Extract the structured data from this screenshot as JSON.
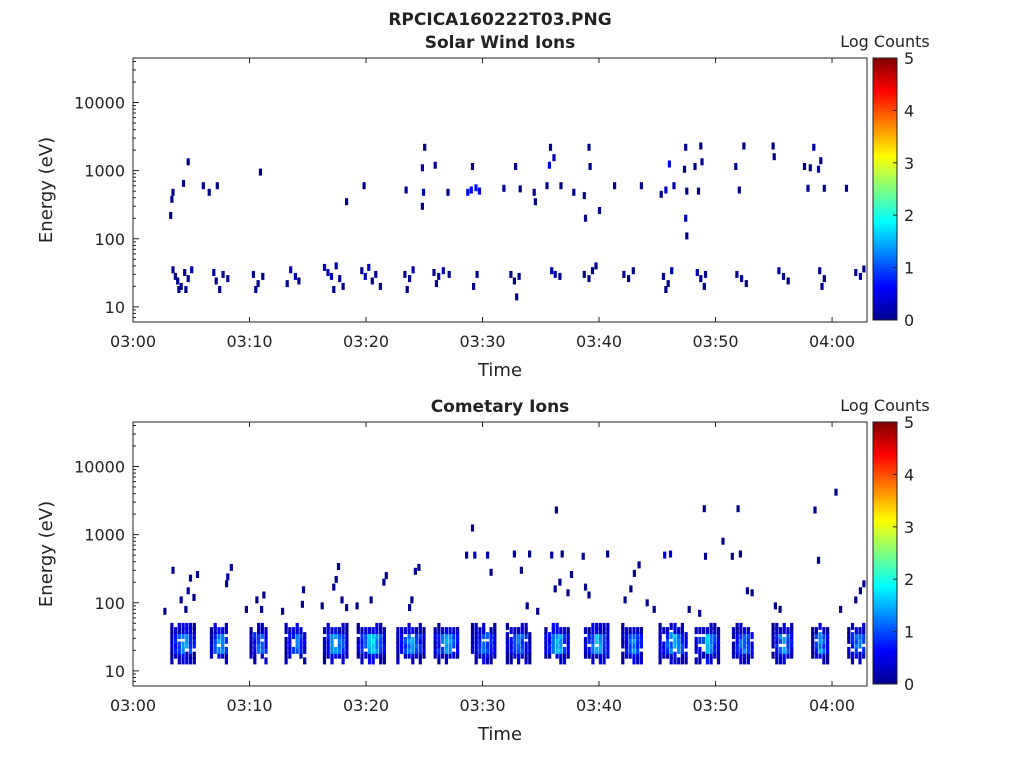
{
  "figure_title": "RPCICA160222T03.PNG",
  "chart_data": [
    {
      "type": "heatmap",
      "title": "Solar Wind Ions",
      "xlabel": "Time",
      "ylabel": "Energy (eV)",
      "x_ticks": [
        "03:00",
        "03:10",
        "03:20",
        "03:30",
        "03:40",
        "03:50",
        "04:00"
      ],
      "xlim_minutes": [
        0,
        63
      ],
      "y_scale": "log",
      "y_ticks": [
        10,
        100,
        1000,
        10000
      ],
      "y_tick_labels": [
        "10",
        "100",
        "1000",
        "10000"
      ],
      "ylim": [
        6,
        45000
      ],
      "colorbar": {
        "label": "Log Counts",
        "ticks": [
          "0",
          "1",
          "2",
          "3",
          "4",
          "5"
        ],
        "range": [
          0,
          5
        ],
        "colormap": "jet"
      },
      "cells_note": "[time_minutes_after_03:00, energy_eV, log_counts]",
      "cells": [
        [
          3.3,
          35,
          0
        ],
        [
          3.5,
          28,
          0
        ],
        [
          3.7,
          24,
          0
        ],
        [
          4.0,
          20,
          0
        ],
        [
          4.3,
          32,
          0
        ],
        [
          4.6,
          26,
          0
        ],
        [
          4.9,
          35,
          0.2
        ],
        [
          3.8,
          18,
          0
        ],
        [
          4.4,
          18,
          0
        ],
        [
          6.8,
          32,
          0
        ],
        [
          7.0,
          24,
          0
        ],
        [
          7.3,
          18,
          0
        ],
        [
          7.6,
          30,
          0
        ],
        [
          8.0,
          26,
          0
        ],
        [
          10.2,
          30,
          0
        ],
        [
          10.6,
          22,
          0
        ],
        [
          11.0,
          28,
          0
        ],
        [
          10.4,
          18,
          0
        ],
        [
          13.4,
          35,
          0.3
        ],
        [
          13.8,
          28,
          0.2
        ],
        [
          14.1,
          24,
          0
        ],
        [
          13.1,
          22,
          0
        ],
        [
          16.3,
          38,
          0.3
        ],
        [
          16.6,
          32,
          0.2
        ],
        [
          16.9,
          28,
          0.2
        ],
        [
          17.3,
          40,
          0.2
        ],
        [
          17.6,
          26,
          0
        ],
        [
          17.9,
          20,
          0
        ],
        [
          17.1,
          18,
          0
        ],
        [
          19.5,
          34,
          0
        ],
        [
          19.8,
          28,
          0.2
        ],
        [
          20.1,
          38,
          0.3
        ],
        [
          20.4,
          24,
          0
        ],
        [
          20.7,
          30,
          0
        ],
        [
          21.1,
          20,
          0
        ],
        [
          23.2,
          30,
          0
        ],
        [
          23.6,
          26,
          0
        ],
        [
          23.9,
          35,
          0.2
        ],
        [
          23.4,
          18,
          0
        ],
        [
          25.7,
          32,
          0
        ],
        [
          26.1,
          28,
          0.2
        ],
        [
          26.5,
          34,
          0.2
        ],
        [
          27.0,
          30,
          0
        ],
        [
          25.9,
          22,
          0
        ],
        [
          29.4,
          30,
          0
        ],
        [
          29.1,
          20,
          0
        ],
        [
          32.3,
          30,
          0
        ],
        [
          32.6,
          24,
          0
        ],
        [
          33.0,
          28,
          0
        ],
        [
          32.8,
          14,
          0
        ],
        [
          35.8,
          34,
          0.2
        ],
        [
          36.1,
          30,
          0.2
        ],
        [
          36.5,
          28,
          0
        ],
        [
          38.6,
          30,
          0
        ],
        [
          39.0,
          26,
          0
        ],
        [
          39.3,
          34,
          0
        ],
        [
          39.6,
          40,
          0
        ],
        [
          42.0,
          30,
          0
        ],
        [
          42.4,
          26,
          0
        ],
        [
          42.8,
          34,
          0
        ],
        [
          45.4,
          28,
          0
        ],
        [
          45.8,
          22,
          0
        ],
        [
          46.1,
          34,
          0.2
        ],
        [
          45.6,
          18,
          0
        ],
        [
          48.3,
          32,
          0.2
        ],
        [
          48.6,
          26,
          0
        ],
        [
          49.0,
          30,
          0
        ],
        [
          48.9,
          20,
          0
        ],
        [
          51.7,
          30,
          0
        ],
        [
          52.1,
          26,
          0
        ],
        [
          52.5,
          22,
          0
        ],
        [
          55.3,
          34,
          0.2
        ],
        [
          55.7,
          28,
          0
        ],
        [
          56.1,
          24,
          0
        ],
        [
          58.8,
          34,
          0
        ],
        [
          59.2,
          26,
          0
        ],
        [
          59.0,
          20,
          0
        ],
        [
          61.9,
          32,
          0
        ],
        [
          62.3,
          28,
          0.2
        ],
        [
          62.6,
          36,
          0
        ],
        [
          3.1,
          220,
          0
        ],
        [
          3.2,
          380,
          0
        ],
        [
          3.3,
          480,
          0
        ],
        [
          4.2,
          650,
          0
        ],
        [
          4.6,
          1350,
          0
        ],
        [
          5.9,
          600,
          0
        ],
        [
          6.4,
          480,
          0
        ],
        [
          7.1,
          600,
          0
        ],
        [
          10.8,
          950,
          0
        ],
        [
          18.2,
          350,
          0
        ],
        [
          19.7,
          600,
          0
        ],
        [
          23.3,
          520,
          0
        ],
        [
          24.8,
          480,
          0.2
        ],
        [
          24.7,
          300,
          0
        ],
        [
          24.9,
          2200,
          0
        ],
        [
          24.7,
          1100,
          0.2
        ],
        [
          25.8,
          1200,
          0
        ],
        [
          26.9,
          480,
          0
        ],
        [
          28.6,
          480,
          0.7
        ],
        [
          28.9,
          520,
          0.6
        ],
        [
          29.3,
          560,
          0.7
        ],
        [
          29.6,
          500,
          0.5
        ],
        [
          29.0,
          1150,
          0
        ],
        [
          31.7,
          550,
          0
        ],
        [
          32.7,
          1150,
          0
        ],
        [
          33.1,
          540,
          0
        ],
        [
          34.4,
          350,
          0
        ],
        [
          34.3,
          480,
          0
        ],
        [
          35.6,
          1200,
          0.5
        ],
        [
          35.4,
          600,
          0
        ],
        [
          35.7,
          2200,
          0
        ],
        [
          36.0,
          1550,
          0.3
        ],
        [
          36.6,
          600,
          0
        ],
        [
          37.7,
          480,
          0
        ],
        [
          38.6,
          430,
          0
        ],
        [
          39.0,
          2200,
          0
        ],
        [
          39.1,
          1150,
          0
        ],
        [
          38.7,
          200,
          0
        ],
        [
          39.9,
          260,
          0
        ],
        [
          41.2,
          600,
          0
        ],
        [
          43.5,
          600,
          0
        ],
        [
          45.2,
          450,
          0
        ],
        [
          45.6,
          520,
          0.3
        ],
        [
          45.9,
          1250,
          0.5
        ],
        [
          46.3,
          600,
          0.2
        ],
        [
          47.3,
          2200,
          0
        ],
        [
          47.2,
          1050,
          0
        ],
        [
          47.4,
          500,
          0
        ],
        [
          47.3,
          200,
          0.3
        ],
        [
          47.4,
          110,
          0
        ],
        [
          48.1,
          1150,
          0
        ],
        [
          48.4,
          500,
          0
        ],
        [
          48.6,
          2300,
          0
        ],
        [
          48.7,
          1350,
          0
        ],
        [
          51.6,
          1150,
          0
        ],
        [
          51.9,
          520,
          0
        ],
        [
          52.3,
          2300,
          0
        ],
        [
          54.8,
          2300,
          0
        ],
        [
          54.9,
          1600,
          0
        ],
        [
          57.5,
          1150,
          0
        ],
        [
          57.8,
          550,
          0
        ],
        [
          58.0,
          1100,
          0
        ],
        [
          58.3,
          2200,
          0.2
        ],
        [
          58.7,
          1050,
          0.2
        ],
        [
          58.9,
          1400,
          0
        ],
        [
          59.2,
          550,
          0
        ],
        [
          61.1,
          550,
          0
        ]
      ]
    },
    {
      "type": "heatmap",
      "title": "Cometary Ions",
      "xlabel": "Time",
      "ylabel": "Energy (eV)",
      "x_ticks": [
        "03:00",
        "03:10",
        "03:20",
        "03:30",
        "03:40",
        "03:50",
        "04:00"
      ],
      "xlim_minutes": [
        0,
        63
      ],
      "y_scale": "log",
      "y_ticks": [
        10,
        100,
        1000,
        10000
      ],
      "y_tick_labels": [
        "10",
        "100",
        "1000",
        "10000"
      ],
      "ylim": [
        6,
        45000
      ],
      "colorbar": {
        "label": "Log Counts",
        "ticks": [
          "0",
          "1",
          "2",
          "3",
          "4",
          "5"
        ],
        "range": [
          0,
          5
        ],
        "colormap": "jet"
      },
      "bursts_note": "[start_minute, end_minute, peak_log_counts] energetic bursts spanning ~12-45 eV with core at ~20-35 eV",
      "bursts": [
        [
          3.2,
          5.4,
          1.5
        ],
        [
          6.6,
          8.1,
          1.6
        ],
        [
          10.0,
          11.6,
          1.3
        ],
        [
          13.0,
          14.8,
          1.2
        ],
        [
          16.3,
          18.3,
          1.6
        ],
        [
          19.2,
          21.6,
          1.8
        ],
        [
          22.6,
          24.9,
          1.5
        ],
        [
          25.8,
          27.9,
          1.6
        ],
        [
          29.0,
          31.1,
          1.2
        ],
        [
          32.0,
          34.0,
          1.3
        ],
        [
          35.3,
          37.4,
          1.6
        ],
        [
          38.7,
          40.8,
          1.6
        ],
        [
          41.9,
          43.8,
          1.3
        ],
        [
          45.1,
          47.6,
          1.5
        ],
        [
          48.2,
          50.2,
          1.6
        ],
        [
          51.4,
          53.2,
          1.3
        ],
        [
          54.8,
          56.6,
          1.5
        ],
        [
          58.2,
          59.6,
          1.4
        ],
        [
          61.3,
          63.0,
          1.4
        ]
      ],
      "cells_note": "[time_minutes_after_03:00, energy_eV, log_counts] sparse points above bursts",
      "cells": [
        [
          2.6,
          75,
          0
        ],
        [
          3.3,
          300,
          0
        ],
        [
          4.0,
          110,
          0
        ],
        [
          4.4,
          80,
          0
        ],
        [
          4.6,
          150,
          0.2
        ],
        [
          4.8,
          230,
          0
        ],
        [
          5.1,
          120,
          0
        ],
        [
          5.4,
          260,
          0
        ],
        [
          7.9,
          190,
          0
        ],
        [
          8.0,
          240,
          0.2
        ],
        [
          8.3,
          330,
          0
        ],
        [
          9.6,
          80,
          0
        ],
        [
          10.5,
          110,
          0
        ],
        [
          10.9,
          80,
          0
        ],
        [
          11.1,
          130,
          0
        ],
        [
          12.7,
          75,
          0
        ],
        [
          14.4,
          95,
          0
        ],
        [
          14.5,
          155,
          0
        ],
        [
          16.1,
          90,
          0
        ],
        [
          17.1,
          170,
          0
        ],
        [
          17.3,
          220,
          0
        ],
        [
          17.5,
          340,
          0
        ],
        [
          17.8,
          110,
          0
        ],
        [
          18.2,
          85,
          0
        ],
        [
          19.1,
          90,
          0
        ],
        [
          20.3,
          110,
          0
        ],
        [
          21.4,
          200,
          0
        ],
        [
          21.6,
          250,
          0
        ],
        [
          23.6,
          85,
          0
        ],
        [
          23.8,
          110,
          0
        ],
        [
          24.1,
          290,
          0
        ],
        [
          24.4,
          330,
          0
        ],
        [
          28.5,
          500,
          0.2
        ],
        [
          29.0,
          1250,
          0
        ],
        [
          29.2,
          500,
          0.3
        ],
        [
          30.3,
          500,
          0.3
        ],
        [
          30.6,
          280,
          0
        ],
        [
          32.6,
          520,
          0.2
        ],
        [
          33.2,
          300,
          0
        ],
        [
          33.9,
          520,
          0
        ],
        [
          33.7,
          90,
          0
        ],
        [
          34.6,
          75,
          0
        ],
        [
          35.8,
          500,
          0.2
        ],
        [
          36.2,
          2300,
          0
        ],
        [
          36.7,
          520,
          0
        ],
        [
          36.5,
          200,
          0
        ],
        [
          36.1,
          160,
          0
        ],
        [
          37.2,
          140,
          0
        ],
        [
          37.5,
          260,
          0
        ],
        [
          38.5,
          480,
          0
        ],
        [
          38.7,
          170,
          0
        ],
        [
          39.0,
          130,
          0
        ],
        [
          40.6,
          520,
          0
        ],
        [
          42.1,
          110,
          0
        ],
        [
          42.6,
          160,
          0
        ],
        [
          42.9,
          270,
          0
        ],
        [
          43.3,
          360,
          0
        ],
        [
          44.0,
          100,
          0
        ],
        [
          44.6,
          80,
          0
        ],
        [
          45.5,
          500,
          0.5
        ],
        [
          46.0,
          520,
          0.4
        ],
        [
          47.6,
          80,
          0
        ],
        [
          48.5,
          70,
          0
        ],
        [
          48.9,
          2400,
          0
        ],
        [
          49.0,
          480,
          0
        ],
        [
          50.5,
          800,
          0
        ],
        [
          51.3,
          480,
          0
        ],
        [
          51.8,
          2400,
          0
        ],
        [
          52.0,
          520,
          0
        ],
        [
          52.6,
          150,
          0
        ],
        [
          53.0,
          140,
          0
        ],
        [
          55.0,
          90,
          0
        ],
        [
          55.4,
          80,
          0
        ],
        [
          58.4,
          2300,
          0
        ],
        [
          58.7,
          420,
          0
        ],
        [
          60.2,
          4200,
          0
        ],
        [
          60.6,
          80,
          0
        ],
        [
          61.9,
          110,
          0
        ],
        [
          62.3,
          150,
          0
        ],
        [
          62.6,
          190,
          0
        ],
        [
          62.8,
          240,
          0
        ],
        [
          63.0,
          320,
          0
        ]
      ]
    }
  ]
}
